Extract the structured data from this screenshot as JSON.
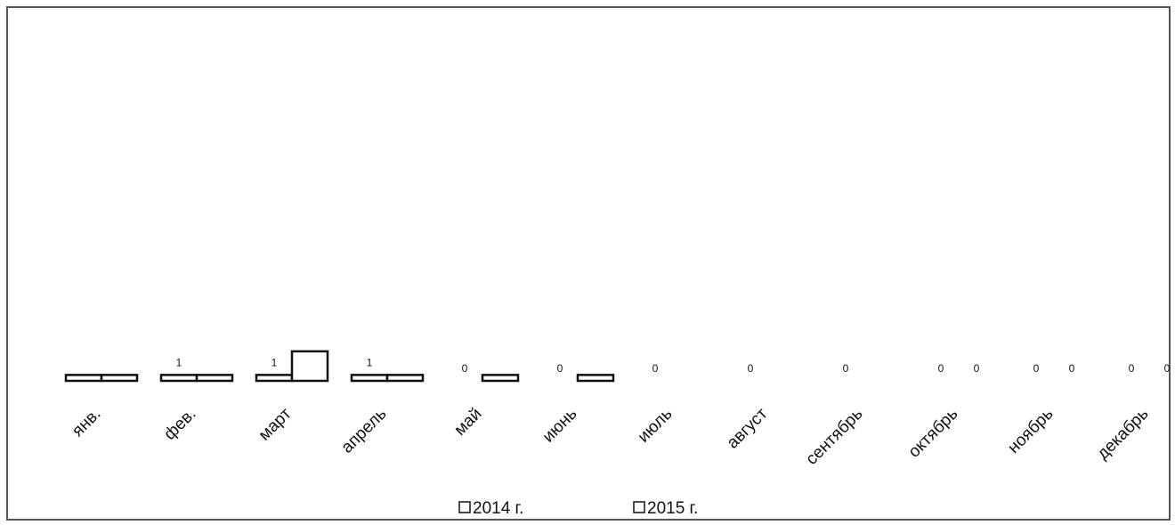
{
  "chart_data": {
    "type": "bar",
    "categories": [
      "янв.",
      "фев.",
      "март",
      "апрель",
      "май",
      "июнь",
      "июль",
      "август",
      "сентябрь",
      "октябрь",
      "ноябрь",
      "декабрь"
    ],
    "series": [
      {
        "name": "2014 г.",
        "values": [
          1,
          1,
          1,
          1,
          0,
          0,
          0,
          0,
          0,
          0,
          0,
          0
        ],
        "labels": [
          "",
          "1",
          "1",
          "1",
          "0",
          "0",
          "0",
          "0",
          "0",
          "0",
          "0",
          "0"
        ]
      },
      {
        "name": "2015 г.",
        "values": [
          1,
          1,
          5,
          1,
          1,
          1,
          0,
          0,
          0,
          0,
          0,
          0
        ],
        "labels": [
          "",
          "",
          "",
          "",
          "",
          "",
          "",
          "",
          "",
          "0",
          "0",
          "0"
        ]
      }
    ],
    "title": "",
    "xlabel": "",
    "ylabel": "",
    "ylim": [
      0,
      60
    ],
    "grid": false,
    "legend": "bottom",
    "colors": {
      "bar_fill": "#ffffff",
      "bar_stroke": "#111111",
      "frame": "#555555",
      "text": "#111111"
    }
  }
}
